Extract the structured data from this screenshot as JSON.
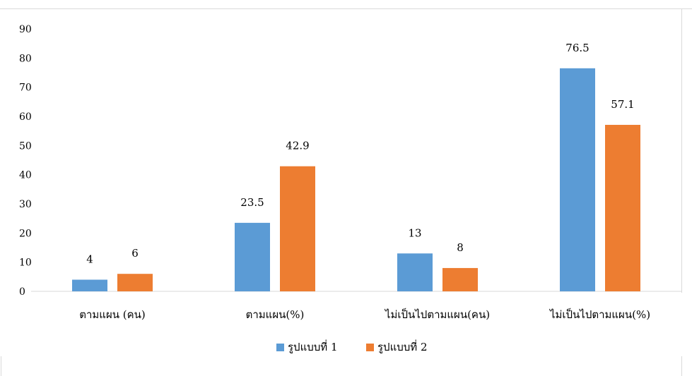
{
  "chart_data": {
    "type": "bar",
    "title": "",
    "xlabel": "",
    "ylabel": "",
    "ylim": [
      0,
      90
    ],
    "yticks": [
      "0",
      "10",
      "20",
      "30",
      "40",
      "50",
      "60",
      "70",
      "80",
      "90"
    ],
    "grid": false,
    "legend_position": "bottom",
    "categories": [
      "ตามแผน (คน)",
      "ตามแผน(%)",
      "ไม่เป็นไปตามแผน(คน)",
      "ไม่เป็นไปตามแผน(%)"
    ],
    "series": [
      {
        "name": "รูปแบบที่ 1",
        "color": "#5b9bd5",
        "values": [
          4,
          23.5,
          13,
          76.5
        ],
        "labels": [
          "4",
          "23.5",
          "13",
          "76.5"
        ]
      },
      {
        "name": "รูปแบบที่ 2",
        "color": "#ed7d31",
        "values": [
          6,
          42.9,
          8,
          57.1
        ],
        "labels": [
          "6",
          "42.9",
          "8",
          "57.1"
        ]
      }
    ]
  }
}
